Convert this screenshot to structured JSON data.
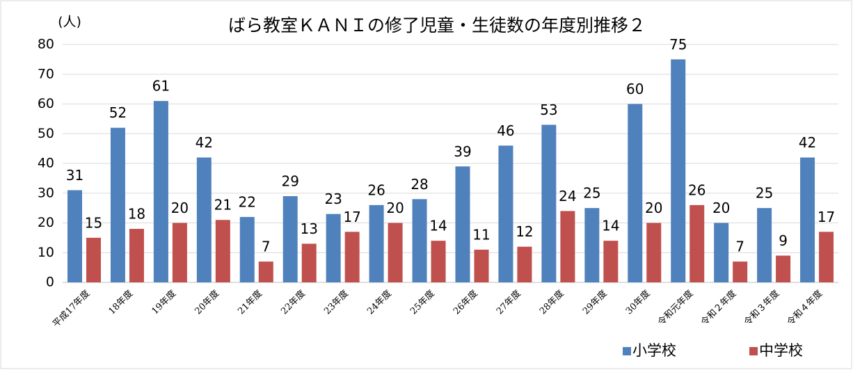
{
  "chart_data": {
    "type": "bar",
    "title": "ばら教室ＫＡＮＩの修了児童・生徒数の年度別推移２",
    "y_label": "(人)",
    "categories": [
      "平成17年度",
      "18年度",
      "19年度",
      "20年度",
      "21年度",
      "22年度",
      "23年度",
      "24年度",
      "25年度",
      "26年度",
      "27年度",
      "28年度",
      "29年度",
      "30年度",
      "令和元年度",
      "令和２年度",
      "令和３年度",
      "令和４年度"
    ],
    "series": [
      {
        "name": "小学校",
        "color": "#4f81bd",
        "values": [
          31,
          52,
          61,
          42,
          22,
          29,
          23,
          26,
          28,
          39,
          46,
          53,
          25,
          60,
          75,
          20,
          25,
          42
        ]
      },
      {
        "name": "中学校",
        "color": "#c0504d",
        "values": [
          15,
          18,
          20,
          21,
          7,
          13,
          17,
          20,
          14,
          11,
          12,
          24,
          14,
          20,
          26,
          7,
          9,
          17
        ]
      }
    ],
    "ylim": [
      0,
      80
    ],
    "yticks": [
      0,
      10,
      20,
      30,
      40,
      50,
      60,
      70,
      80
    ],
    "grid": true,
    "legend": "bottom-right"
  }
}
